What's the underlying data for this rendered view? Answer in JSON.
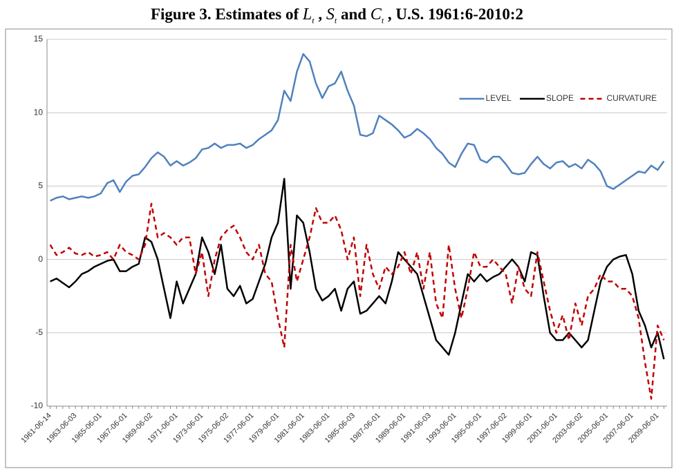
{
  "chart_data": {
    "type": "line",
    "title_parts": [
      {
        "text": "Figure 3. Estimates of"
      },
      {
        "symbol": "L",
        "sub": "t"
      },
      {
        "text": ","
      },
      {
        "symbol": "S",
        "sub": "t"
      },
      {
        "text": "and"
      },
      {
        "symbol": "C",
        "sub": "t"
      },
      {
        "text": ", U.S. 1961:6-2010:2"
      }
    ],
    "categories": [
      "1961-06-14",
      null,
      null,
      null,
      "1963-06-03",
      null,
      null,
      null,
      "1965-06-01",
      null,
      null,
      null,
      "1967-06-01",
      null,
      null,
      null,
      "1969-06-02",
      null,
      null,
      null,
      "1971-06-01",
      null,
      null,
      null,
      "1973-06-01",
      null,
      null,
      null,
      "1975-06-02",
      null,
      null,
      null,
      "1977-06-01",
      null,
      null,
      null,
      "1979-06-01",
      null,
      null,
      null,
      "1981-06-01",
      null,
      null,
      null,
      "1983-06-01",
      null,
      null,
      null,
      "1985-06-03",
      null,
      null,
      null,
      "1987-06-01",
      null,
      null,
      null,
      "1989-06-01",
      null,
      null,
      null,
      "1991-06-03",
      null,
      null,
      null,
      "1993-06-01",
      null,
      null,
      null,
      "1995-06-01",
      null,
      null,
      null,
      "1997-06-02",
      null,
      null,
      null,
      "1999-06-01",
      null,
      null,
      null,
      "2001-06-01",
      null,
      null,
      null,
      "2003-06-02",
      null,
      null,
      null,
      "2005-06-01",
      null,
      null,
      null,
      "2007-06-01",
      null,
      null,
      null,
      "2009-06-01",
      null
    ],
    "series": [
      {
        "name": "LEVEL",
        "color": "#4f81bd",
        "dash": false,
        "values": [
          4.0,
          4.2,
          4.3,
          4.1,
          4.2,
          4.3,
          4.2,
          4.3,
          4.5,
          5.2,
          5.4,
          4.6,
          5.3,
          5.7,
          5.8,
          6.3,
          6.9,
          7.3,
          7.0,
          6.4,
          6.7,
          6.4,
          6.6,
          6.9,
          7.5,
          7.6,
          7.9,
          7.6,
          7.8,
          7.8,
          7.9,
          7.6,
          7.8,
          8.2,
          8.5,
          8.8,
          9.5,
          11.5,
          10.8,
          12.8,
          14.0,
          13.5,
          12.0,
          11.0,
          11.8,
          12.0,
          12.8,
          11.5,
          10.5,
          8.5,
          8.4,
          8.6,
          9.8,
          9.5,
          9.2,
          8.8,
          8.3,
          8.5,
          8.9,
          8.6,
          8.2,
          7.6,
          7.2,
          6.6,
          6.3,
          7.2,
          7.9,
          7.8,
          6.8,
          6.6,
          7.0,
          7.0,
          6.5,
          5.9,
          5.8,
          5.9,
          6.5,
          7.0,
          6.5,
          6.2,
          6.6,
          6.7,
          6.3,
          6.5,
          6.2,
          6.8,
          6.5,
          6.0,
          5.0,
          4.8,
          5.1,
          5.4,
          5.7,
          6.0,
          5.9,
          6.4,
          6.1,
          6.7
        ]
      },
      {
        "name": "SLOPE",
        "color": "#000000",
        "dash": false,
        "values": [
          -1.5,
          -1.3,
          -1.6,
          -1.9,
          -1.5,
          -1.0,
          -0.8,
          -0.5,
          -0.3,
          -0.1,
          0.0,
          -0.8,
          -0.8,
          -0.5,
          -0.3,
          1.5,
          1.2,
          0.0,
          -2.0,
          -4.0,
          -1.5,
          -3.0,
          -2.0,
          -1.0,
          1.5,
          0.5,
          -1.0,
          1.0,
          -2.0,
          -2.5,
          -1.8,
          -3.0,
          -2.7,
          -1.5,
          -0.3,
          1.5,
          2.5,
          5.5,
          -2.0,
          3.0,
          2.5,
          0.5,
          -2.0,
          -2.8,
          -2.5,
          -2.0,
          -3.5,
          -2.0,
          -1.5,
          -3.7,
          -3.5,
          -3.0,
          -2.5,
          -3.0,
          -1.5,
          0.5,
          0.0,
          -0.5,
          -1.0,
          -2.5,
          -4.0,
          -5.5,
          -6.0,
          -6.5,
          -5.0,
          -3.0,
          -1.0,
          -1.5,
          -1.0,
          -1.5,
          -1.2,
          -1.0,
          -0.5,
          0.0,
          -0.5,
          -1.5,
          0.5,
          0.3,
          -2.5,
          -5.0,
          -5.5,
          -5.5,
          -5.0,
          -5.5,
          -6.0,
          -5.5,
          -3.5,
          -1.5,
          -0.5,
          0.0,
          0.2,
          0.3,
          -1.0,
          -3.5,
          -4.5,
          -6.0,
          -5.0,
          -6.8
        ]
      },
      {
        "name": "CURVATURE",
        "color": "#c00000",
        "dash": true,
        "values": [
          1.0,
          0.3,
          0.5,
          0.8,
          0.4,
          0.3,
          0.5,
          0.2,
          0.3,
          0.5,
          0.0,
          1.0,
          0.5,
          0.3,
          0.0,
          1.0,
          3.8,
          1.5,
          1.8,
          1.5,
          1.0,
          1.5,
          1.5,
          -1.0,
          0.5,
          -2.5,
          0.0,
          1.5,
          2.0,
          2.3,
          1.5,
          0.5,
          0.0,
          1.0,
          -1.0,
          -1.5,
          -4.0,
          -6.0,
          1.0,
          -1.5,
          0.0,
          1.5,
          3.5,
          2.5,
          2.5,
          3.0,
          2.0,
          0.0,
          1.5,
          -2.5,
          1.0,
          -1.0,
          -2.0,
          -0.5,
          -1.0,
          -0.5,
          0.5,
          -1.0,
          0.5,
          -2.0,
          0.5,
          -3.0,
          -4.0,
          1.0,
          -2.0,
          -4.0,
          -2.0,
          0.5,
          -0.5,
          -0.5,
          0.0,
          -0.5,
          -1.0,
          -3.0,
          -0.5,
          -2.0,
          -2.5,
          0.5,
          -1.5,
          -3.5,
          -5.0,
          -3.8,
          -5.5,
          -3.0,
          -4.5,
          -2.5,
          -2.0,
          -1.0,
          -1.5,
          -1.5,
          -2.0,
          -2.0,
          -2.5,
          -4.0,
          -7.0,
          -9.5,
          -4.5,
          -5.5
        ]
      }
    ],
    "ylim": [
      -10,
      15
    ],
    "yticks": [
      -10,
      -5,
      0,
      5,
      10,
      15
    ],
    "grid": true,
    "legend": "upper right"
  }
}
